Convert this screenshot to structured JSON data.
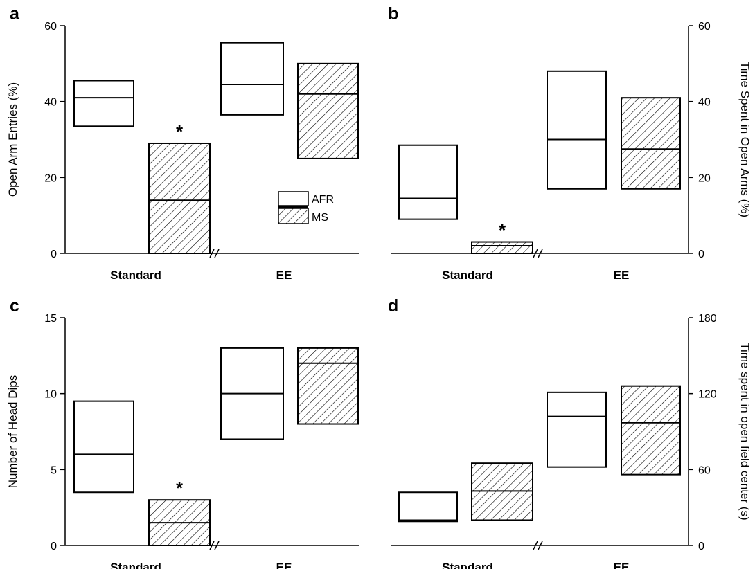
{
  "legend": {
    "afr_label": "AFR",
    "ms_label": "MS"
  },
  "chart_data": [
    {
      "panel_letter": "a",
      "type": "box",
      "ylabel": "Open Arm Entries (%)",
      "yaxis_side": "left",
      "ylim": [
        0,
        60
      ],
      "yticks": [
        "0",
        "20",
        "40",
        "60"
      ],
      "categories": [
        "Standard",
        "EE"
      ],
      "axis_break": true,
      "legend": true,
      "series": [
        {
          "name": "AFR",
          "pattern": "open",
          "boxes": [
            {
              "low": 33.5,
              "median": 41,
              "high": 45.5
            },
            {
              "low": 36.5,
              "median": 44.5,
              "high": 55.5
            }
          ]
        },
        {
          "name": "MS",
          "pattern": "hatched",
          "boxes": [
            {
              "low": 0,
              "median": 14,
              "high": 29,
              "star": "*"
            },
            {
              "low": 25,
              "median": 42,
              "high": 50
            }
          ]
        }
      ]
    },
    {
      "panel_letter": "b",
      "type": "box",
      "ylabel": "Time Spent in Open Arms (%)",
      "yaxis_side": "right",
      "ylim": [
        0,
        60
      ],
      "yticks": [
        "0",
        "20",
        "40",
        "60"
      ],
      "categories": [
        "Standard",
        "EE"
      ],
      "axis_break": true,
      "legend": false,
      "series": [
        {
          "name": "AFR",
          "pattern": "open",
          "boxes": [
            {
              "low": 9,
              "median": 14.5,
              "high": 28.5
            },
            {
              "low": 17,
              "median": 30,
              "high": 48
            }
          ]
        },
        {
          "name": "MS",
          "pattern": "hatched",
          "boxes": [
            {
              "low": 0,
              "median": 2,
              "high": 3,
              "star": "*"
            },
            {
              "low": 17,
              "median": 27.5,
              "high": 41
            }
          ]
        }
      ]
    },
    {
      "panel_letter": "c",
      "type": "box",
      "ylabel": "Number of Head Dips",
      "yaxis_side": "left",
      "ylim": [
        0,
        15
      ],
      "yticks": [
        "0",
        "5",
        "10",
        "15"
      ],
      "categories": [
        "Standard",
        "EE"
      ],
      "axis_break": true,
      "legend": false,
      "series": [
        {
          "name": "AFR",
          "pattern": "open",
          "boxes": [
            {
              "low": 3.5,
              "median": 6,
              "high": 9.5
            },
            {
              "low": 7,
              "median": 10,
              "high": 13
            }
          ]
        },
        {
          "name": "MS",
          "pattern": "hatched",
          "boxes": [
            {
              "low": 0,
              "median": 1.5,
              "high": 3,
              "star": "*"
            },
            {
              "low": 8,
              "median": 12,
              "high": 13
            }
          ]
        }
      ]
    },
    {
      "panel_letter": "d",
      "type": "box",
      "ylabel": "Time spent in open field center (s)",
      "yaxis_side": "right",
      "ylim": [
        0,
        180
      ],
      "yticks": [
        "0",
        "60",
        "120",
        "180"
      ],
      "categories": [
        "Standard",
        "EE"
      ],
      "axis_break": true,
      "legend": false,
      "series": [
        {
          "name": "AFR",
          "pattern": "open",
          "boxes": [
            {
              "low": 19,
              "median": 20,
              "high": 42
            },
            {
              "low": 62,
              "median": 102,
              "high": 121
            }
          ]
        },
        {
          "name": "MS",
          "pattern": "hatched",
          "boxes": [
            {
              "low": 20,
              "median": 43,
              "high": 65
            },
            {
              "low": 56,
              "median": 97,
              "high": 126
            }
          ]
        }
      ]
    }
  ]
}
